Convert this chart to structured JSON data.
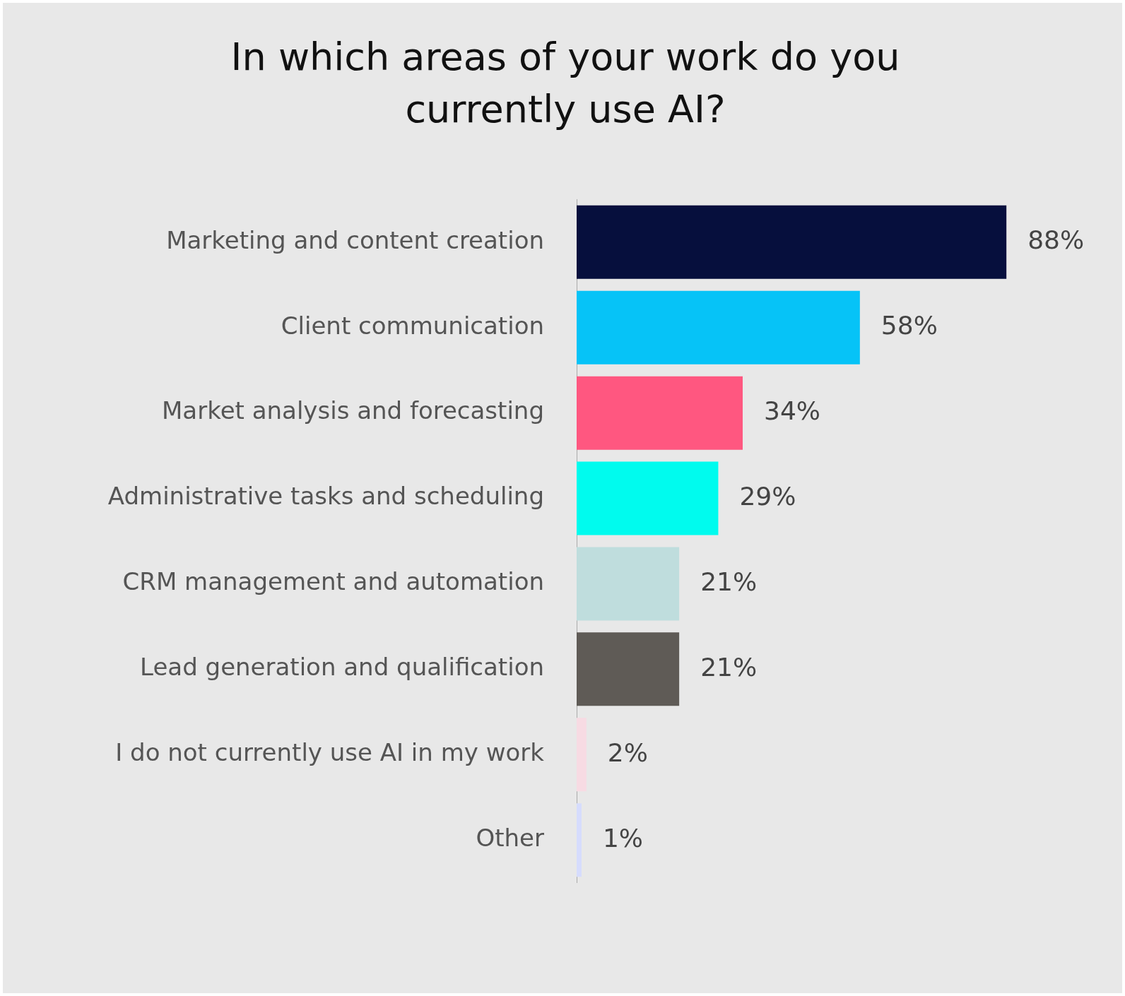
{
  "chart_data": {
    "type": "bar",
    "orientation": "horizontal",
    "title": "In which areas of your work do you currently use AI?",
    "categories": [
      "Marketing and content creation",
      "Client communication",
      "Market analysis and forecasting",
      "Administrative tasks and scheduling",
      "CRM management and automation",
      "Lead generation and qualification",
      "I do not currently use AI in my work",
      "Other"
    ],
    "values": [
      88,
      58,
      34,
      29,
      21,
      21,
      2,
      1
    ],
    "value_labels": [
      "88%",
      "58%",
      "34%",
      "29%",
      "21%",
      "21%",
      "2%",
      "1%"
    ],
    "colors": [
      "#060f3d",
      "#06c3f7",
      "#ff5780",
      "#00fbee",
      "#bfdddd",
      "#5f5b56",
      "#f7dbe3",
      "#d6dcfd"
    ],
    "legend": false
  }
}
